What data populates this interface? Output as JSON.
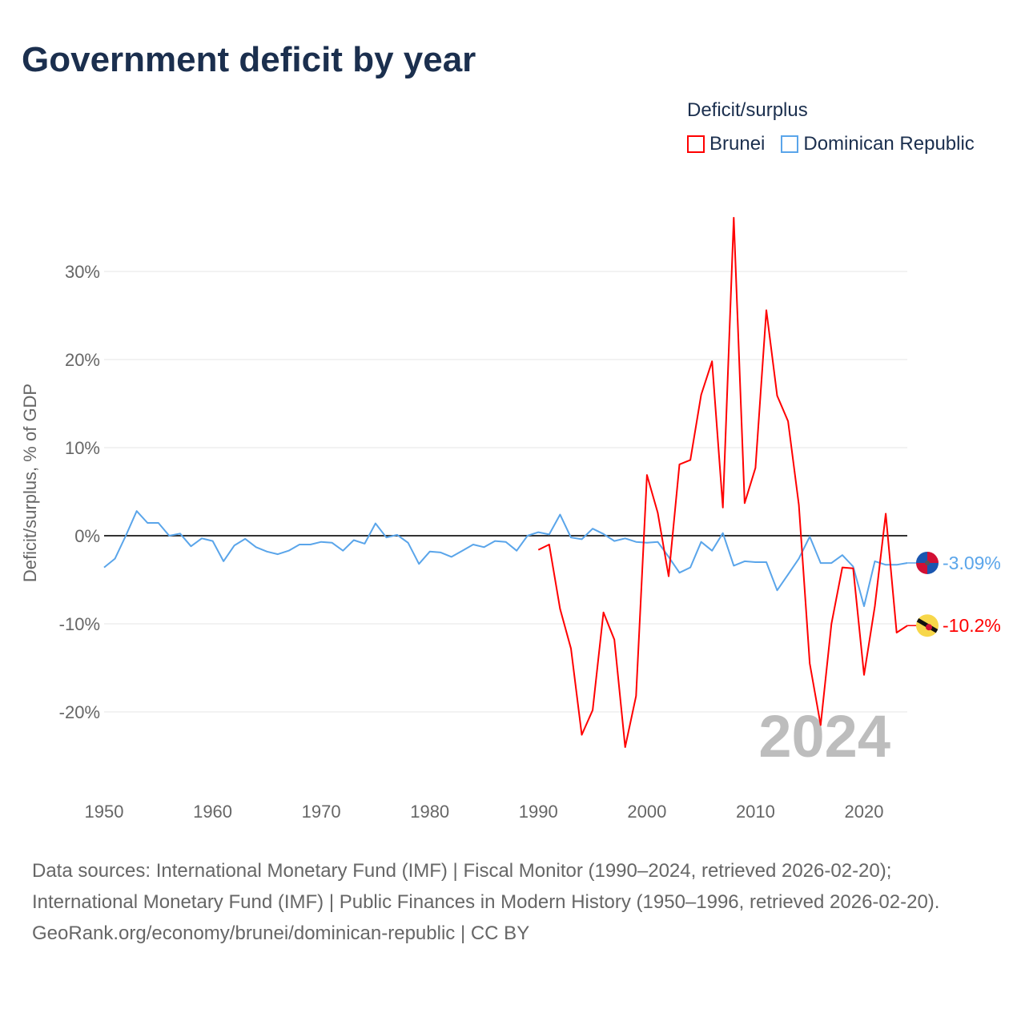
{
  "title": "Government deficit by year",
  "legend": {
    "title": "Deficit/surplus",
    "items": [
      {
        "label": "Brunei",
        "color": "#ff0000"
      },
      {
        "label": "Dominican Republic",
        "color": "#5aa5ea"
      }
    ]
  },
  "year_label": "2024",
  "end_labels": {
    "dr": "-3.09%",
    "brunei": "-10.2%"
  },
  "footer": {
    "line1": "Data sources: International Monetary Fund (IMF) | Fiscal Monitor (1990–2024, retrieved 2026-02-20); International Monetary Fund (IMF) | Public Finances in Modern History (1950–1996, retrieved 2026-02-20).",
    "line2": "GeoRank.org/economy/brunei/dominican-republic | CC BY"
  },
  "chart_data": {
    "type": "line",
    "title": "Government deficit by year",
    "xlabel": "",
    "ylabel": "Deficit/surplus, % of GDP",
    "xlim": [
      1950,
      2024
    ],
    "ylim": [
      -28,
      37
    ],
    "xticks": [
      1950,
      1960,
      1970,
      1980,
      1990,
      2000,
      2010,
      2020
    ],
    "yticks": [
      -20,
      -10,
      0,
      10,
      20,
      30
    ],
    "ytick_labels": [
      "-20%",
      "-10%",
      "0%",
      "10%",
      "20%",
      "30%"
    ],
    "series": [
      {
        "name": "Dominican Republic",
        "color": "#5aa5ea",
        "start": 1950,
        "values": [
          -3.6,
          -2.6,
          0,
          2.8,
          1.45,
          1.45,
          0,
          0.25,
          -1.2,
          -0.3,
          -0.6,
          -2.9,
          -1.1,
          -0.35,
          -1.3,
          -1.8,
          -2.1,
          -1.7,
          -1.0,
          -1.0,
          -0.7,
          -0.8,
          -1.7,
          -0.5,
          -0.9,
          1.4,
          -0.2,
          0.1,
          -0.8,
          -3.2,
          -1.8,
          -1.9,
          -2.4,
          -1.7,
          -1.0,
          -1.3,
          -0.6,
          -0.7,
          -1.7,
          0,
          0.4,
          0.15,
          2.4,
          -0.2,
          -0.4,
          0.8,
          0.2,
          -0.6,
          -0.3,
          -0.7,
          -0.8,
          -0.7,
          -2.4,
          -4.2,
          -3.6,
          -0.7,
          -1.7,
          0.3,
          -3.4,
          -2.9,
          -3.0,
          -3.0,
          -6.2,
          -4.4,
          -2.6,
          -0.1,
          -3.1,
          -3.1,
          -2.2,
          -3.5,
          -8.0,
          -2.9,
          -3.3,
          -3.3,
          -3.09
        ]
      },
      {
        "name": "Brunei",
        "color": "#ff0000",
        "start": 1990,
        "values": [
          -1.6,
          -1.0,
          -8.3,
          -12.8,
          -22.6,
          -19.8,
          -8.7,
          -11.8,
          -24.0,
          -18.2,
          6.9,
          2.6,
          -4.6,
          8.1,
          8.6,
          16.0,
          19.8,
          3.2,
          36.1,
          3.7,
          7.7,
          25.6,
          15.9,
          13.0,
          3.5,
          -14.5,
          -21.5,
          -10.0,
          -3.6,
          -3.7,
          -15.8,
          -8.0,
          2.5,
          -11.0,
          -10.2
        ]
      }
    ]
  }
}
